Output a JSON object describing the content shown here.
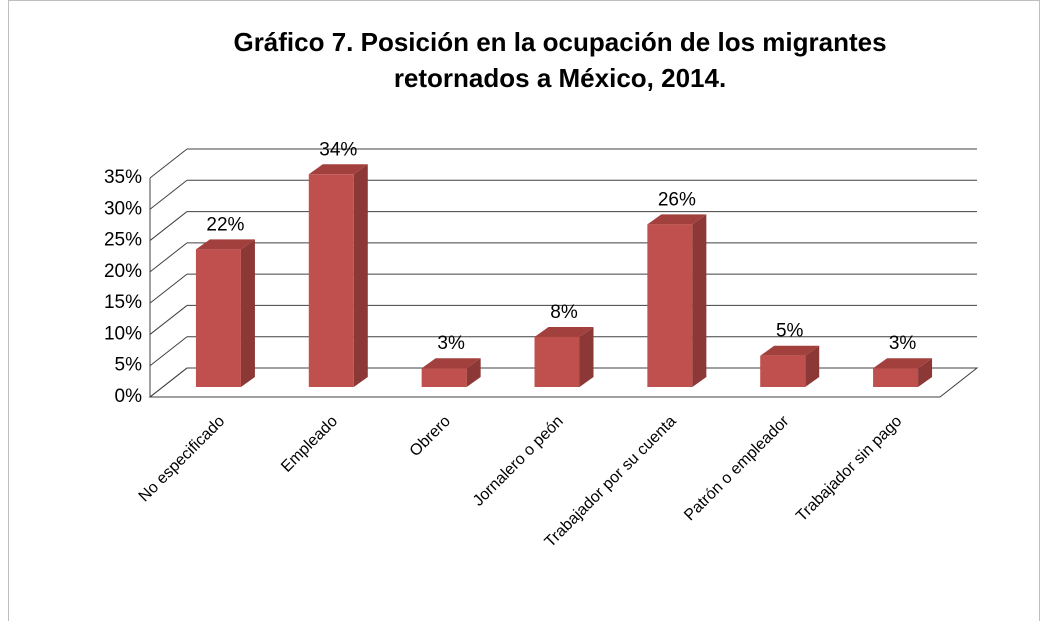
{
  "chart_data": {
    "type": "bar3d",
    "title": [
      "Gráfico 7. Posición en la ocupación de los migrantes",
      "retornados a México, 2014."
    ],
    "categories": [
      "No especificado",
      "Empleado",
      "Obrero",
      "Jornalero o peón",
      "Trabajador por su cuenta",
      "Patrón o empleador",
      "Trabajador sin pago"
    ],
    "values": [
      22,
      34,
      3,
      8,
      26,
      5,
      3
    ],
    "value_labels": [
      "22%",
      "34%",
      "3%",
      "8%",
      "26%",
      "5%",
      "3%"
    ],
    "color": "#c0504d",
    "ylim": [
      0,
      35
    ],
    "yticks": [
      {
        "value": 0,
        "label": "0%"
      },
      {
        "value": 5,
        "label": "5%"
      },
      {
        "value": 10,
        "label": "10%"
      },
      {
        "value": 15,
        "label": "15%"
      },
      {
        "value": 20,
        "label": "20%"
      },
      {
        "value": 25,
        "label": "25%"
      },
      {
        "value": 30,
        "label": "30%"
      },
      {
        "value": 35,
        "label": "35%"
      }
    ],
    "grid": true
  }
}
